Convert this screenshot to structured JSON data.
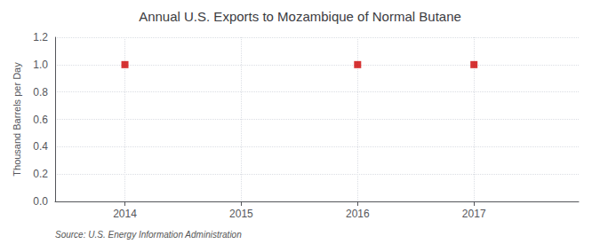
{
  "chart_data": {
    "type": "scatter",
    "title": "Annual U.S. Exports to Mozambique of Normal Butane",
    "ylabel": "Thousand Barrels per Day",
    "source": "Source: U.S. Energy Information Administration",
    "x": [
      2014,
      2016,
      2017
    ],
    "values": [
      1.0,
      1.0,
      1.0
    ],
    "color": "#cc0000",
    "marker": "square",
    "xlim": [
      2013.4,
      2017.9
    ],
    "xticks": [
      2014,
      2015,
      2016,
      2017
    ],
    "ylim": [
      0.0,
      1.2
    ],
    "yticks": [
      {
        "value": 0.0,
        "label": "0.0"
      },
      0.2,
      0.4,
      0.6,
      0.8,
      {
        "value": 1.0,
        "label": "1.0"
      },
      1.2
    ],
    "grid": true
  }
}
